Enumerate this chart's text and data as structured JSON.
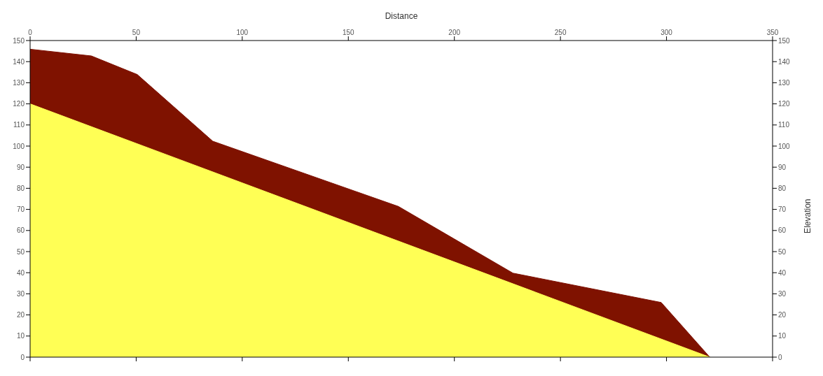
{
  "chart_data": {
    "type": "area",
    "xlabel": "Distance",
    "y2label": "Elevation",
    "xlim": [
      0,
      350
    ],
    "xticks": [
      0,
      50,
      100,
      150,
      200,
      250,
      300,
      350
    ],
    "ylim": [
      0,
      150
    ],
    "yticks": [
      0,
      10,
      20,
      30,
      40,
      50,
      60,
      70,
      80,
      90,
      100,
      110,
      120,
      130,
      140,
      150
    ],
    "y2lim": [
      0,
      150
    ],
    "y2ticks": [
      0,
      10,
      20,
      30,
      40,
      50,
      60,
      70,
      80,
      90,
      100,
      110,
      120,
      130,
      140,
      150
    ],
    "series": [
      {
        "color": "#7f1200",
        "x": [
          0,
          28.9,
          50.5,
          86.1,
          173.6,
          227.6,
          297.5,
          320.4
        ],
        "values": [
          145.9,
          142.7,
          133.9,
          102.3,
          71.4,
          39.8,
          25.9,
          0
        ]
      },
      {
        "color": "#ffff55",
        "x": [
          0,
          320.4
        ],
        "values": [
          120,
          0
        ]
      }
    ]
  }
}
